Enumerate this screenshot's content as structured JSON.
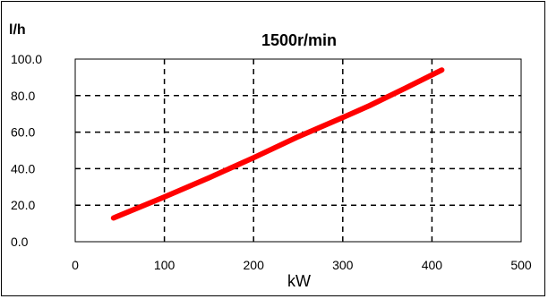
{
  "chart_data": {
    "type": "line",
    "title": "1500r/min",
    "ylabel": "l/h",
    "xlabel": "kW",
    "xlim": [
      0,
      500
    ],
    "ylim": [
      0,
      100
    ],
    "x_ticks": [
      0,
      100,
      200,
      300,
      400,
      500
    ],
    "x_tick_labels": [
      "0",
      "100",
      "200",
      "300",
      "400",
      "500"
    ],
    "y_ticks": [
      0,
      20,
      40,
      60,
      80,
      100
    ],
    "y_tick_labels": [
      "0.0",
      "20.0",
      "40.0",
      "60.0",
      "80.0",
      "100.0"
    ],
    "grid": true,
    "legend": "none",
    "series": [
      {
        "color": "#ff0000",
        "x": [
          43,
          100,
          150,
          200,
          250,
          300,
          330,
          370,
          411
        ],
        "y": [
          13,
          24.5,
          35,
          46,
          57.5,
          68,
          74.5,
          84,
          94
        ]
      }
    ]
  }
}
